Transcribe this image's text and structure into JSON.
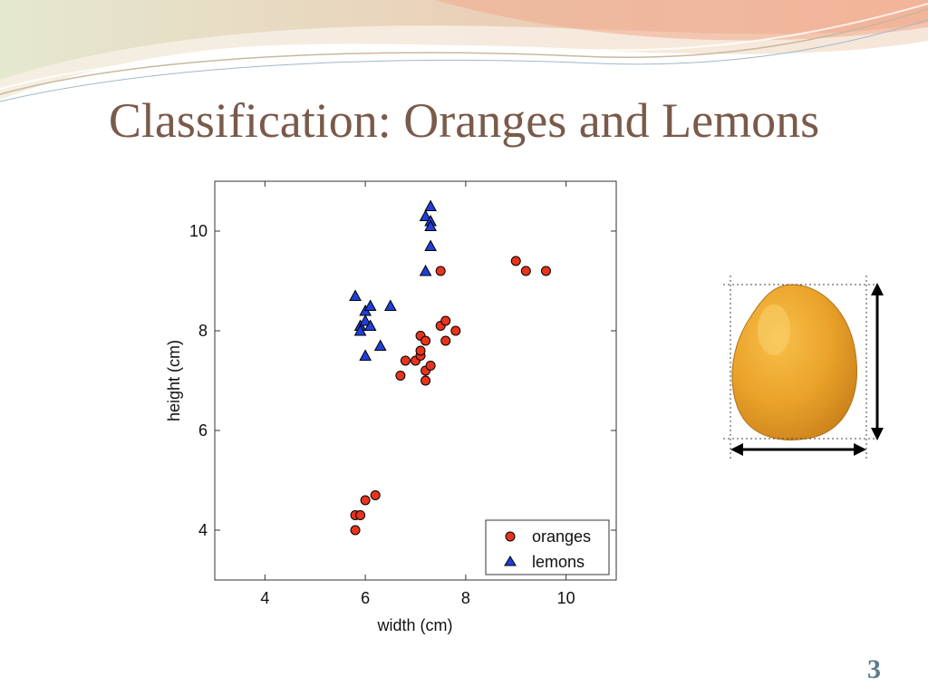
{
  "slide": {
    "title": "Classification: Oranges and Lemons",
    "page_number": "3"
  },
  "colors": {
    "title": "#7a5a4a",
    "oranges": "#e8341c",
    "lemons": "#1f3fd8",
    "page_number": "#5a7a8a"
  },
  "illustration": {
    "icon": "lemon-with-dimension-arrows-icon"
  },
  "chart_data": {
    "type": "scatter",
    "xlabel": "width (cm)",
    "ylabel": "height (cm)",
    "xlim": [
      3,
      11
    ],
    "ylim": [
      3,
      11
    ],
    "xticks": [
      4,
      6,
      8,
      10
    ],
    "yticks": [
      4,
      6,
      8,
      10
    ],
    "grid": false,
    "legend": "bottom-right",
    "series": [
      {
        "name": "oranges",
        "marker": "circle",
        "color": "#e8341c",
        "points": [
          [
            5.8,
            4.0
          ],
          [
            5.8,
            4.3
          ],
          [
            5.9,
            4.3
          ],
          [
            6.0,
            4.6
          ],
          [
            6.2,
            4.7
          ],
          [
            6.7,
            7.1
          ],
          [
            6.8,
            7.4
          ],
          [
            7.0,
            7.4
          ],
          [
            7.1,
            7.5
          ],
          [
            7.1,
            7.6
          ],
          [
            7.1,
            7.9
          ],
          [
            7.2,
            7.8
          ],
          [
            7.2,
            7.2
          ],
          [
            7.2,
            7.0
          ],
          [
            7.3,
            7.3
          ],
          [
            7.5,
            8.1
          ],
          [
            7.6,
            8.2
          ],
          [
            7.6,
            7.8
          ],
          [
            7.8,
            8.0
          ],
          [
            7.5,
            9.2
          ],
          [
            9.0,
            9.4
          ],
          [
            9.2,
            9.2
          ],
          [
            9.6,
            9.2
          ]
        ]
      },
      {
        "name": "lemons",
        "marker": "triangle",
        "color": "#1f3fd8",
        "points": [
          [
            5.8,
            8.7
          ],
          [
            5.9,
            8.1
          ],
          [
            5.9,
            8.0
          ],
          [
            6.0,
            8.4
          ],
          [
            6.0,
            8.2
          ],
          [
            6.1,
            8.5
          ],
          [
            6.1,
            8.1
          ],
          [
            6.0,
            7.5
          ],
          [
            6.3,
            7.7
          ],
          [
            6.5,
            8.5
          ],
          [
            7.2,
            9.2
          ],
          [
            7.2,
            10.3
          ],
          [
            7.3,
            10.5
          ],
          [
            7.3,
            10.2
          ],
          [
            7.3,
            10.1
          ],
          [
            7.3,
            9.7
          ]
        ]
      }
    ]
  }
}
